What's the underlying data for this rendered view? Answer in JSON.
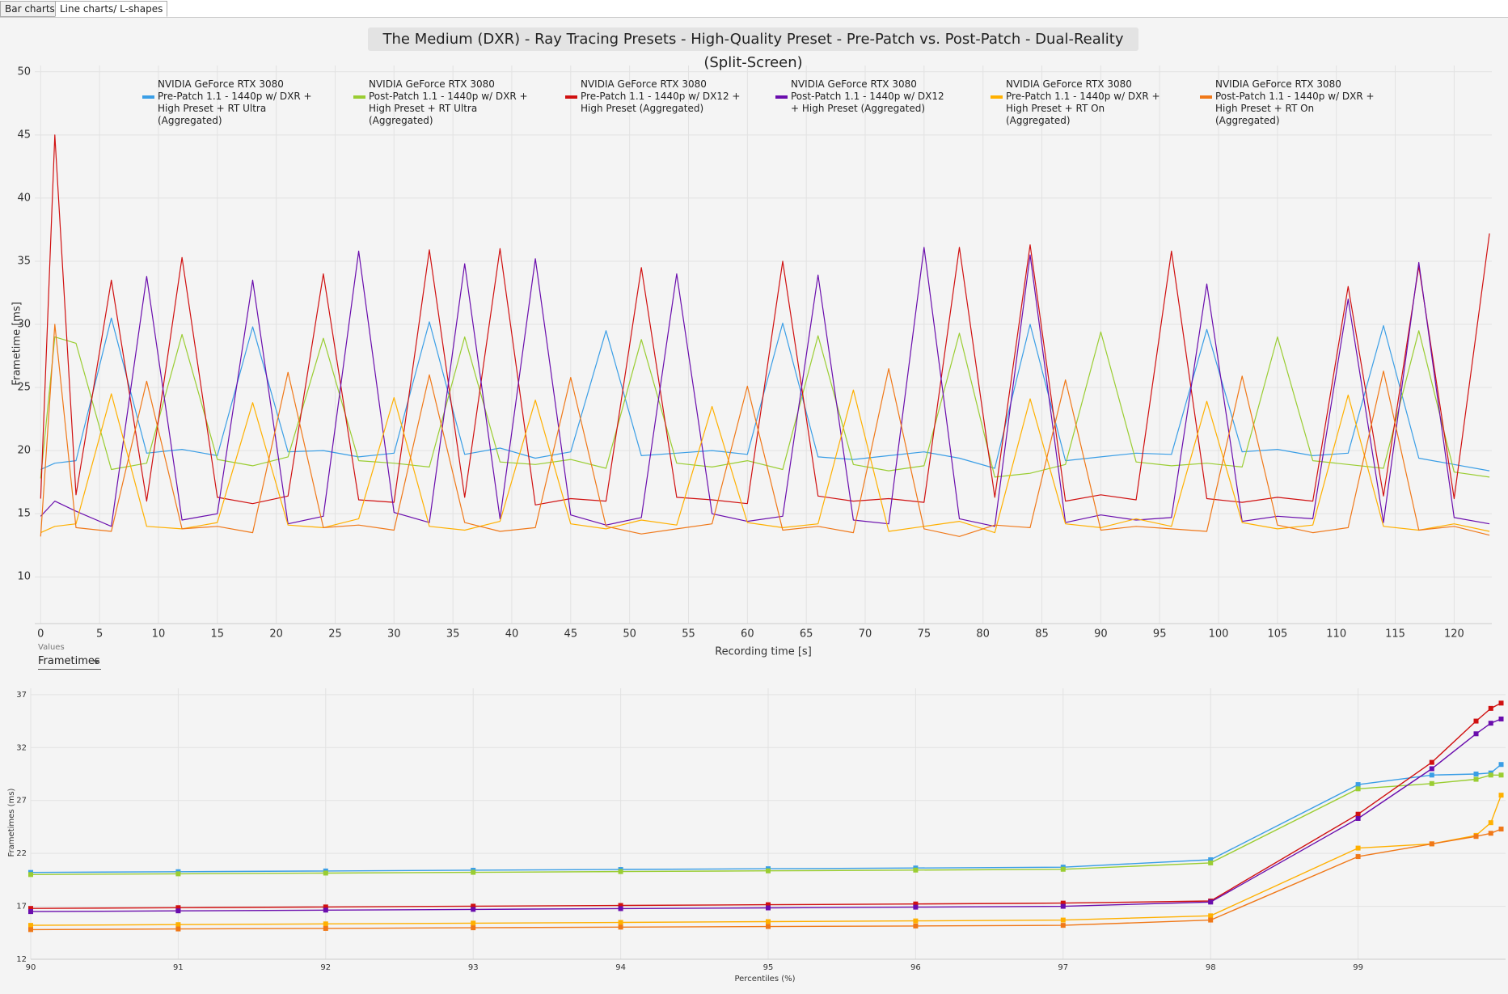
{
  "ui": {
    "tabs": [
      "Bar charts",
      "Line charts/ L-shapes"
    ],
    "values_label": "Values",
    "values_dropdown": "Frametimes"
  },
  "chart_data": [
    {
      "type": "line",
      "title": "The Medium (DXR) - Ray Tracing Presets - High-Quality Preset - Pre-Patch vs. Post-Patch - Dual-Reality (Split-Screen)",
      "x_label": "Recording time [s]",
      "y_label": "Frametime [ms]",
      "grid": true,
      "legend": "top",
      "xlim": [
        -0.5,
        123.2
      ],
      "xticks": [
        0,
        5,
        10,
        15,
        20,
        25,
        30,
        35,
        40,
        45,
        50,
        55,
        60,
        65,
        70,
        75,
        80,
        85,
        90,
        95,
        100,
        105,
        110,
        115,
        120
      ],
      "ylim": [
        6.3,
        50.5
      ],
      "yticks": [
        10,
        15,
        20,
        25,
        30,
        35,
        40,
        45,
        50
      ],
      "x": [
        0,
        1.2,
        3,
        6,
        9,
        12,
        15,
        18,
        21,
        24,
        27,
        30,
        33,
        36,
        39,
        42,
        45,
        48,
        51,
        54,
        57,
        60,
        63,
        66,
        69,
        72,
        75,
        78,
        81,
        84,
        87,
        90,
        93,
        96,
        99,
        102,
        105,
        108,
        111,
        114,
        117,
        120,
        123
      ],
      "series": [
        {
          "gpu": "NVIDIA GeForce RTX 3080",
          "name": "Pre-Patch 1.1 - 1440p w/ DXR + High Preset + RT Ultra (Aggregated)",
          "color": "#3a9ee6",
          "values": [
            18.5,
            19.0,
            19.2,
            30.5,
            19.8,
            20.1,
            19.6,
            29.8,
            19.9,
            20.0,
            19.5,
            19.8,
            30.2,
            19.7,
            20.2,
            19.4,
            19.9,
            29.5,
            19.6,
            19.8,
            20.0,
            19.7,
            30.1,
            19.5,
            19.3,
            19.6,
            19.9,
            19.4,
            18.6,
            30.0,
            19.2,
            19.5,
            19.8,
            19.7,
            29.6,
            19.9,
            20.1,
            19.6,
            19.8,
            29.9,
            19.4,
            18.9,
            18.4
          ]
        },
        {
          "gpu": "NVIDIA GeForce RTX 3080",
          "name": "Post-Patch 1.1 - 1440p w/ DXR + High Preset + RT Ultra (Aggregated)",
          "color": "#9acd32",
          "values": [
            17.8,
            29.0,
            28.5,
            18.5,
            19.0,
            29.2,
            19.3,
            18.8,
            19.5,
            28.9,
            19.2,
            19.0,
            18.7,
            29.0,
            19.1,
            18.9,
            19.3,
            18.6,
            28.8,
            19.0,
            18.7,
            19.2,
            18.5,
            29.1,
            18.9,
            18.4,
            18.8,
            29.3,
            17.9,
            18.2,
            18.9,
            29.4,
            19.1,
            18.8,
            19.0,
            18.7,
            29.0,
            19.2,
            18.9,
            18.6,
            29.5,
            18.3,
            17.9
          ]
        },
        {
          "gpu": "NVIDIA GeForce RTX 3080",
          "name": "Pre-Patch 1.1 - 1440p w/ DX12 + High Preset (Aggregated)",
          "color": "#d01010",
          "values": [
            16.2,
            45.0,
            16.5,
            33.5,
            16.0,
            35.3,
            16.3,
            15.8,
            16.4,
            34.0,
            16.1,
            15.9,
            35.9,
            16.3,
            36.0,
            15.7,
            16.2,
            16.0,
            34.5,
            16.3,
            16.1,
            15.8,
            35.0,
            16.4,
            16.0,
            16.2,
            15.9,
            36.1,
            16.3,
            36.3,
            16.0,
            16.5,
            16.1,
            35.8,
            16.2,
            15.9,
            16.3,
            16.0,
            33.0,
            16.4,
            34.6,
            16.2,
            37.2
          ]
        },
        {
          "gpu": "NVIDIA GeForce RTX 3080",
          "name": "Post-Patch 1.1 - 1440p w/ DX12 + High Preset (Aggregated)",
          "color": "#6a0dad",
          "values": [
            14.8,
            16.0,
            15.2,
            14.0,
            33.8,
            14.5,
            15.0,
            33.5,
            14.2,
            14.8,
            35.8,
            15.1,
            14.3,
            34.8,
            14.6,
            35.2,
            14.9,
            14.1,
            14.7,
            34.0,
            15.0,
            14.4,
            14.8,
            33.9,
            14.5,
            14.2,
            36.1,
            14.6,
            14.0,
            35.5,
            14.3,
            14.9,
            14.5,
            14.7,
            33.2,
            14.4,
            14.8,
            14.6,
            32.0,
            14.3,
            34.9,
            14.7,
            14.2
          ]
        },
        {
          "gpu": "NVIDIA GeForce RTX 3080",
          "name": "Pre-Patch 1.1 - 1440p w/ DXR + High Preset + RT On (Aggregated)",
          "color": "#ffb000",
          "values": [
            13.5,
            14.0,
            14.2,
            24.5,
            14.0,
            13.8,
            14.3,
            23.8,
            14.1,
            13.9,
            14.6,
            24.2,
            14.0,
            13.7,
            14.4,
            24.0,
            14.2,
            13.8,
            14.5,
            14.1,
            23.5,
            14.3,
            13.9,
            14.2,
            24.8,
            13.6,
            14.0,
            14.4,
            13.5,
            24.1,
            14.2,
            13.9,
            14.6,
            14.0,
            23.9,
            14.3,
            13.8,
            14.1,
            24.4,
            14.0,
            13.7,
            14.2,
            13.6
          ]
        },
        {
          "gpu": "NVIDIA GeForce RTX 3080",
          "name": "Post-Patch 1.1 - 1440p w/ DXR + High Preset + RT On (Aggregated)",
          "color": "#f07818",
          "values": [
            13.2,
            30.0,
            13.9,
            13.6,
            25.5,
            13.8,
            14.0,
            13.5,
            26.2,
            13.9,
            14.1,
            13.7,
            26.0,
            14.3,
            13.6,
            13.9,
            25.8,
            14.0,
            13.4,
            13.8,
            14.2,
            25.1,
            13.7,
            14.0,
            13.5,
            26.5,
            13.8,
            13.2,
            14.1,
            13.9,
            25.6,
            13.7,
            14.0,
            13.8,
            13.6,
            25.9,
            14.1,
            13.5,
            13.9,
            26.3,
            13.7,
            14.0,
            13.3
          ]
        }
      ]
    },
    {
      "type": "line",
      "x_label": "Percentiles (%)",
      "y_label": "Frametimes (ms)",
      "grid": true,
      "markers": true,
      "xlim": [
        90,
        100
      ],
      "xticks": [
        90,
        91,
        92,
        93,
        94,
        95,
        96,
        97,
        98,
        99
      ],
      "ylim": [
        12,
        37.6
      ],
      "yticks": [
        12,
        17,
        22,
        27,
        32,
        37
      ],
      "x": [
        90,
        91,
        92,
        93,
        94,
        95,
        96,
        97,
        98,
        99,
        99.5,
        99.8,
        99.9,
        99.97
      ],
      "series": [
        {
          "color": "#3a9ee6",
          "values": [
            20.2,
            20.27,
            20.34,
            20.41,
            20.48,
            20.55,
            20.62,
            20.7,
            21.4,
            28.5,
            29.4,
            29.5,
            29.6,
            30.4
          ]
        },
        {
          "color": "#9acd32",
          "values": [
            20.0,
            20.07,
            20.14,
            20.21,
            20.28,
            20.35,
            20.42,
            20.5,
            21.1,
            28.1,
            28.6,
            29.0,
            29.4,
            29.4
          ]
        },
        {
          "color": "#d01010",
          "values": [
            16.8,
            16.87,
            16.94,
            17.01,
            17.08,
            17.15,
            17.22,
            17.3,
            17.5,
            25.7,
            30.6,
            34.5,
            35.7,
            36.2
          ]
        },
        {
          "color": "#6a0dad",
          "values": [
            16.5,
            16.57,
            16.64,
            16.71,
            16.78,
            16.85,
            16.92,
            17.0,
            17.4,
            25.3,
            30.0,
            33.3,
            34.3,
            34.7
          ]
        },
        {
          "color": "#ffb000",
          "values": [
            15.2,
            15.27,
            15.34,
            15.41,
            15.48,
            15.55,
            15.62,
            15.7,
            16.1,
            22.5,
            22.9,
            23.7,
            24.9,
            27.5
          ]
        },
        {
          "color": "#f07818",
          "values": [
            14.8,
            14.86,
            14.91,
            14.97,
            15.03,
            15.09,
            15.14,
            15.2,
            15.7,
            21.7,
            22.9,
            23.6,
            23.9,
            24.3
          ]
        }
      ]
    }
  ]
}
